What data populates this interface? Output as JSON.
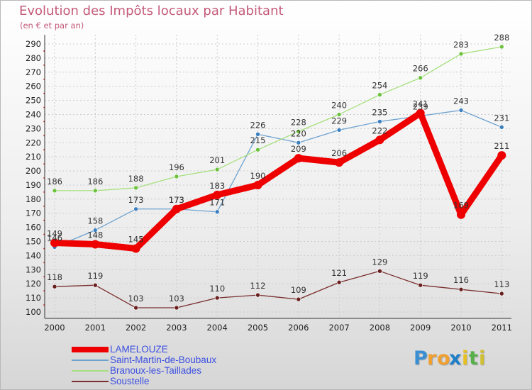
{
  "colors": {
    "title": "#c45a7a",
    "legend_text": "#3b4fe0",
    "axis": "#333333",
    "grid": "#cccccc"
  },
  "logo": {
    "letters": [
      {
        "char": "P",
        "color": "#3a8fd4"
      },
      {
        "char": "r",
        "color": "#f0a030"
      },
      {
        "char": "o",
        "color": "#f0a030"
      },
      {
        "char": "x",
        "color": "#1f7fc8"
      },
      {
        "char": "i",
        "color": "#e6c020"
      },
      {
        "char": "t",
        "color": "#58b04a"
      },
      {
        "char": "i",
        "color": "#d0c030"
      }
    ]
  },
  "chart_data": {
    "type": "line",
    "title": "Evolution des Impôts locaux par Habitant",
    "subtitle": "(en € et par an)",
    "xlabel": "",
    "ylabel": "",
    "categories": [
      "2000",
      "2001",
      "2002",
      "2003",
      "2004",
      "2005",
      "2006",
      "2007",
      "2008",
      "2009",
      "2010",
      "2011"
    ],
    "ylim": [
      100,
      290
    ],
    "ytick_step": 10,
    "grid": true,
    "legend_position": "bottom-left",
    "series": [
      {
        "name": "LAMELOUZE",
        "color": "#ee0000",
        "marker_color": "#ee0000",
        "width": "thick",
        "values": [
          149,
          148,
          145,
          173,
          183,
          190,
          209,
          206,
          222,
          241,
          169,
          211
        ]
      },
      {
        "name": "Saint-Martin-de-Boubaux",
        "color": "#6fa3cf",
        "marker_color": "#3a7fc0",
        "width": "thin",
        "values": [
          146,
          158,
          173,
          173,
          171,
          226,
          220,
          229,
          235,
          239,
          243,
          231
        ]
      },
      {
        "name": "Branoux-les-Taillades",
        "color": "#a6e07e",
        "marker_color": "#6cc23d",
        "width": "thin",
        "values": [
          186,
          186,
          188,
          196,
          201,
          215,
          228,
          240,
          254,
          266,
          283,
          288
        ]
      },
      {
        "name": "Soustelle",
        "color": "#7a2f2f",
        "marker_color": "#6a1f1f",
        "width": "thin",
        "values": [
          118,
          119,
          103,
          103,
          110,
          112,
          109,
          121,
          129,
          119,
          116,
          113
        ]
      }
    ]
  }
}
